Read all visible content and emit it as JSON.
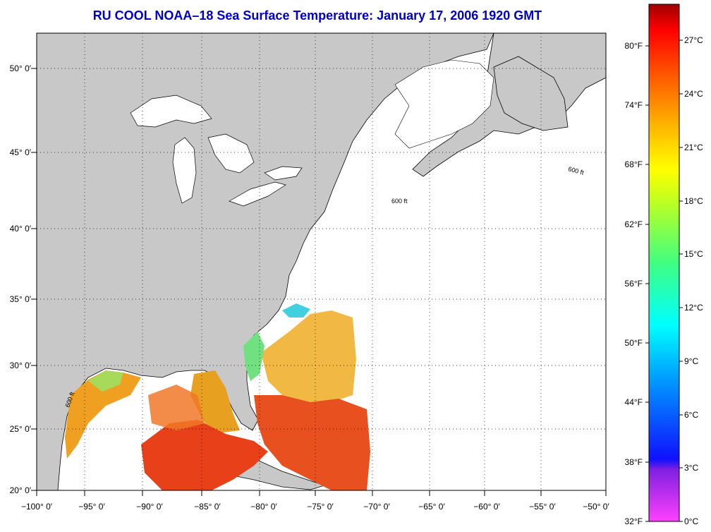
{
  "title": "RU COOL  NOAA–18  Sea Surface Temperature:  January 17, 2006 1920 GMT",
  "map": {
    "lat_labels": [
      "50° 0′",
      "45° 0′",
      "40° 0′",
      "35° 0′",
      "30° 0′",
      "25° 0′",
      "20° 0′"
    ],
    "lon_labels": [
      "−100° 0′",
      "−95° 0′",
      "−90° 0′",
      "−85° 0′",
      "−80° 0′",
      "−75° 0′",
      "−70° 0′",
      "−65° 0′",
      "−60° 0′",
      "−55° 0′",
      "−50° 0′"
    ],
    "contour_label": "600 ft",
    "colors": {
      "land": "#c8c8c8",
      "ocean": "#ffffff",
      "grid": "#000000"
    }
  },
  "legend": {
    "fahrenheit": [
      "80°F",
      "74°F",
      "68°F",
      "62°F",
      "56°F",
      "50°F",
      "44°F",
      "38°F",
      "32°F"
    ],
    "celsius": [
      "27°C",
      "24°C",
      "21°C",
      "18°C",
      "15°C",
      "12°C",
      "9°C",
      "6°C",
      "3°C",
      "0°C"
    ]
  }
}
